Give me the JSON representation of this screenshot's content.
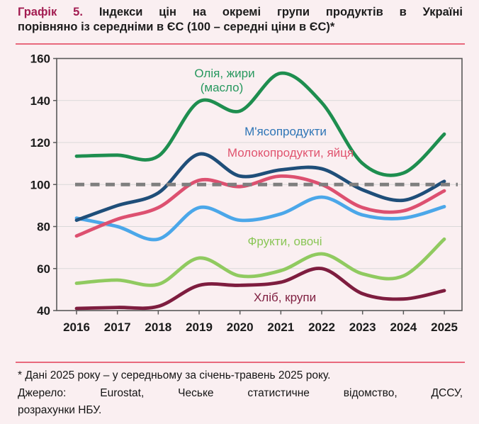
{
  "title": {
    "prefix": "Графік 5.",
    "line1_rest": "Індекси цін на окремі групи продуктів в Україні",
    "line2": "порівняно із середніми в ЄС (100 – середні ціни в ЄС)*"
  },
  "footnote": {
    "line1": "* Дані 2025 року – у середньому за січень-травень 2025 року.",
    "line2": "Джерело: Eurostat, Чеське статистичне відомство, ДССУ,",
    "line3": "розрахунки НБУ."
  },
  "colors": {
    "background": "#faeff1",
    "rule_pink": "#e8697d",
    "title_prefix": "#a21c51",
    "axis": "#595959",
    "grid": "#d9d9d9",
    "tick_text": "#1b1b1b",
    "reference_dash": "#7f7f7f"
  },
  "chart_data": {
    "type": "line",
    "title": "Індекси цін на окремі групи продуктів в Україні порівняно із середніми в ЄС (100 – середні ціни в ЄС)",
    "categories": [
      "2016",
      "2017",
      "2018",
      "2019",
      "2020",
      "2021",
      "2022",
      "2023",
      "2024",
      "2025"
    ],
    "ylim": [
      40,
      160
    ],
    "y_ticks": [
      40,
      60,
      80,
      100,
      120,
      140,
      160
    ],
    "grid": "horizontal",
    "legend_position": "inline-labels",
    "reference_line": {
      "value": 100,
      "style": "dashed",
      "color": "#7f7f7f"
    },
    "series": [
      {
        "id": "oil-fats-butter",
        "label": "Олія, жири (масло)",
        "label_lines": [
          "Олія, жири",
          "(масло)"
        ],
        "color": "#1e8e4f",
        "label_color": "#27985e",
        "values": [
          113.5,
          114,
          113.5,
          139.5,
          135,
          153,
          139,
          110,
          105.5,
          124
        ]
      },
      {
        "id": "meat-products",
        "label": "М'ясопродукти",
        "color": "#1f4e79",
        "label_color": "#2e75b6",
        "values": [
          83,
          90,
          96,
          114.5,
          104,
          107,
          107.5,
          97.5,
          92.5,
          101.5
        ]
      },
      {
        "id": "dairy-eggs",
        "label": "Молокопродукти, яйця",
        "color": "#dd5070",
        "label_color": "#e0536e",
        "values": [
          75.5,
          83.5,
          89,
          102,
          99,
          104,
          100,
          89,
          87.5,
          97
        ]
      },
      {
        "id": "light-blue-unlabeled",
        "label": "",
        "color": "#4ba7e9",
        "values": [
          84,
          80,
          74,
          89,
          83,
          86,
          94,
          85.5,
          84,
          89.5
        ]
      },
      {
        "id": "fruits-vegetables",
        "label": "Фрукти, овочі",
        "color": "#90ca60",
        "label_color": "#8ac657",
        "values": [
          53,
          54.5,
          52.5,
          65,
          56.5,
          59,
          67,
          57.5,
          56.5,
          74
        ]
      },
      {
        "id": "bread-cereals",
        "label": "Хліб, крупи",
        "color": "#7e1d3f",
        "label_color": "#7e1d3f",
        "values": [
          41,
          41.5,
          42,
          52,
          52,
          53.5,
          60,
          48,
          45.5,
          49.5
        ]
      }
    ]
  }
}
